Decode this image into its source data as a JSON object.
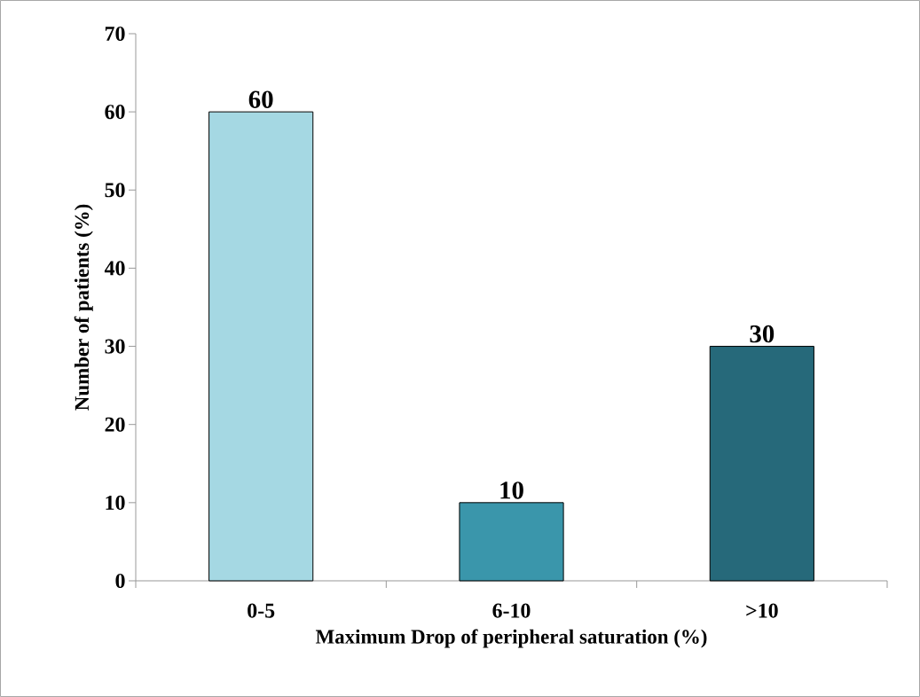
{
  "chart_data": {
    "type": "bar",
    "xlabel": "Maximum Drop of peripheral saturation (%)",
    "ylabel": "Number of patients (%)",
    "categories": [
      "0-5",
      "6-10",
      ">10"
    ],
    "values": [
      60,
      10,
      30
    ],
    "colors": [
      "#a5d8e3",
      "#3a96ab",
      "#26697a"
    ],
    "ylim": [
      0,
      70
    ],
    "yticks": [
      0,
      10,
      20,
      30,
      40,
      50,
      60,
      70
    ],
    "data_labels": true
  }
}
